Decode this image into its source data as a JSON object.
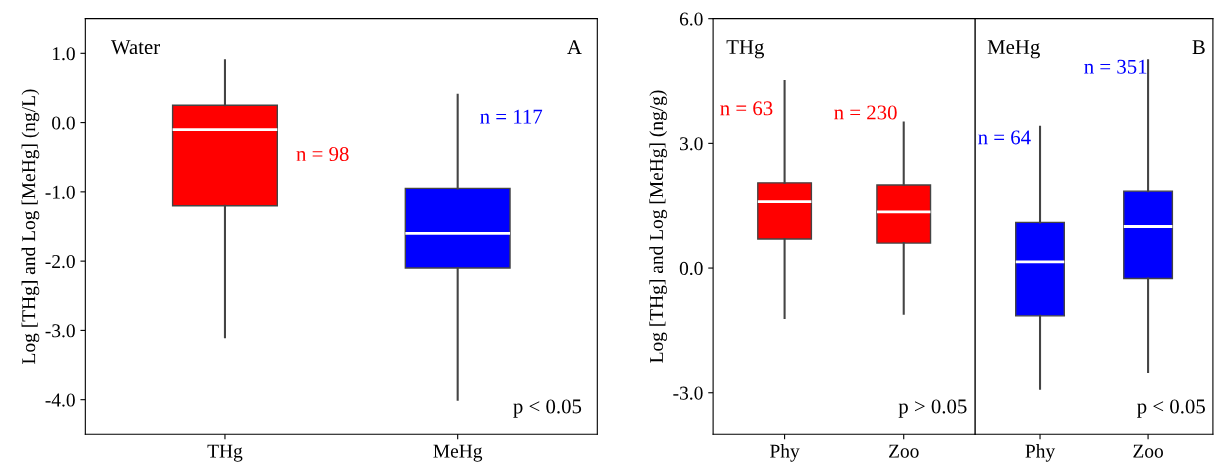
{
  "chart_data": [
    {
      "type": "box",
      "categories": [
        "THg",
        "MeHg"
      ],
      "colors": [
        "#ff0000",
        "#0000ff"
      ],
      "ylabel": "Log [THg] and Log [MeHg] (ng/L)",
      "ylim": [
        -4.5,
        1.5
      ],
      "yticks": [
        {
          "value": -4,
          "label": "-4.0"
        },
        {
          "value": -3,
          "label": "-3.0"
        },
        {
          "value": -2,
          "label": "-2.0"
        },
        {
          "value": -1,
          "label": "-1.0"
        },
        {
          "value": 0,
          "label": "0.0"
        },
        {
          "value": 1,
          "label": "1.0"
        }
      ],
      "boxes": [
        {
          "low": -3.1,
          "q1": -1.2,
          "median": -0.1,
          "q3": 0.25,
          "high": 0.9
        },
        {
          "low": -4.0,
          "q1": -2.1,
          "median": -1.6,
          "q3": -0.95,
          "high": 0.4
        }
      ],
      "annotations": [
        "Water",
        "A",
        "p < 0.05",
        "n = 98",
        "n = 117"
      ]
    },
    {
      "type": "box",
      "categories": [
        "Phy",
        "Zoo"
      ],
      "colors": [
        "#ff0000",
        "#ff0000"
      ],
      "ylabel": "Log [THg] and Log [MeHg] (ng/g)",
      "ylim": [
        -4,
        6
      ],
      "yticks": [
        {
          "value": -3,
          "label": "-3.0"
        },
        {
          "value": 0,
          "label": "0.0"
        },
        {
          "value": 3,
          "label": "3.0"
        },
        {
          "value": 6,
          "label": "6.0"
        }
      ],
      "boxes": [
        {
          "low": -1.2,
          "q1": 0.7,
          "median": 1.6,
          "q3": 2.05,
          "high": 4.5
        },
        {
          "low": -1.1,
          "q1": 0.6,
          "median": 1.35,
          "q3": 2.0,
          "high": 3.5
        }
      ],
      "annotations": [
        "THg",
        "p > 0.05",
        "n = 63",
        "n = 230"
      ]
    },
    {
      "type": "box",
      "categories": [
        "Phy",
        "Zoo"
      ],
      "colors": [
        "#0000ff",
        "#0000ff"
      ],
      "ylim": [
        -4,
        6
      ],
      "tick_labels": "x",
      "boxes": [
        {
          "low": -2.9,
          "q1": -1.15,
          "median": 0.15,
          "q3": 1.1,
          "high": 3.4
        },
        {
          "low": -2.5,
          "q1": -0.25,
          "median": 1.0,
          "q3": 1.85,
          "high": 5.0
        }
      ],
      "annotations": [
        "MeHg",
        "B",
        "p < 0.05",
        "n = 64",
        "n = 351"
      ]
    }
  ]
}
